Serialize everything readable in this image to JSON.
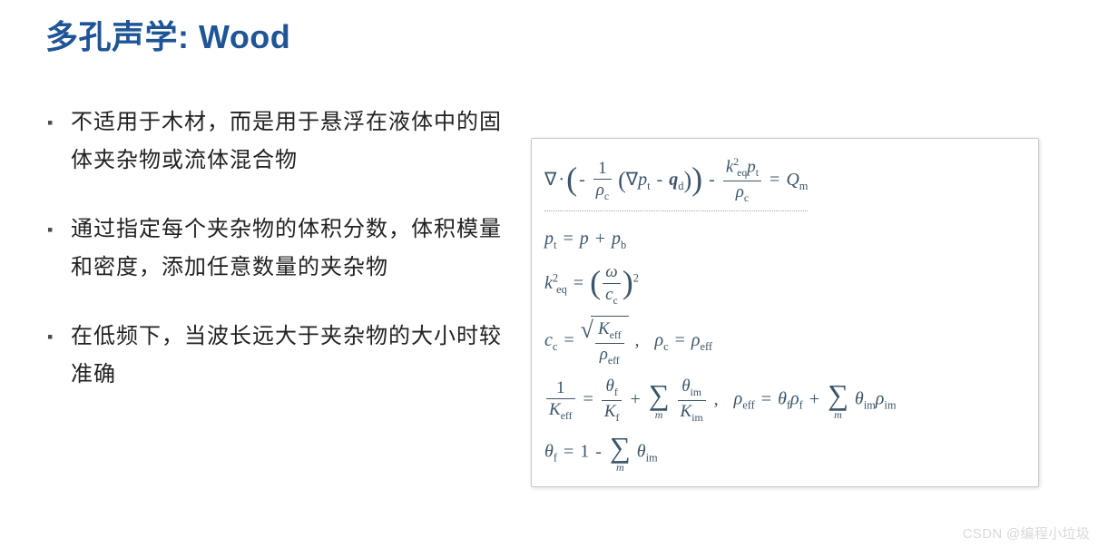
{
  "colors": {
    "title": "#1f5597",
    "bullet_text": "#222222",
    "bullet_marker": "#4b4b4b",
    "eq_border": "#c9c9c9",
    "eq_text": "#3b5568",
    "frac_rule": "#3b5568",
    "watermark": "#d9d9d9",
    "bg": "#ffffff"
  },
  "title": "多孔声学: Wood",
  "bullets": [
    "不适用于木材，而是用于悬浮在液体中的固体夹杂物或流体混合物",
    "通过指定每个夹杂物的体积分数，体积模量和密度，添加任意数量的夹杂物",
    "在低频下，当波长远大于夹杂物的大小时较准确"
  ],
  "equations": {
    "sym": {
      "nabla": "∇",
      "rho": "ρ",
      "omega": "ω",
      "theta": "θ",
      "sum": "∑",
      "dot": "·",
      "minus": "−",
      "plus": "+",
      "eq": "=",
      "comma": ",",
      "one": "1",
      "two": "2"
    },
    "var": {
      "p": "p",
      "pt": "t",
      "pb": "b",
      "q": "q",
      "qd": "d",
      "k": "k",
      "keq": "eq",
      "Q": "Q",
      "Qm": "m",
      "c": "c",
      "cc": "c",
      "K": "K",
      "eff": "eff",
      "f": "f",
      "im": "im",
      "m": "m"
    }
  },
  "watermark": "CSDN @编程小垃圾"
}
